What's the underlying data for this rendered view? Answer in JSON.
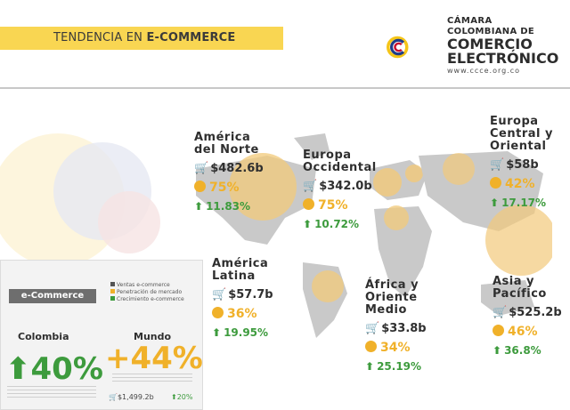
{
  "header": {
    "title_prefix": "TENDENCIA EN ",
    "title_bold": "E-COMMERCE"
  },
  "logo": {
    "line1": "CÁMARA",
    "line2": "COLOMBIANA DE",
    "line3": "COMERCIO",
    "line4": "ELECTRÓNICO",
    "url": "www.ccce.org.co"
  },
  "colors": {
    "yellow": "#f9d652",
    "orange": "#f0b12a",
    "green": "#3d9b3d",
    "map_land": "#c9c9c9",
    "map_highlight": "#f2c97a"
  },
  "regions": [
    {
      "key": "na",
      "name_1": "América",
      "name_2": "del Norte",
      "amount": "$482.6b",
      "share": "75%",
      "growth": "11.83%"
    },
    {
      "key": "we",
      "name_1": "Europa",
      "name_2": "Occidental",
      "amount": "$342.0b",
      "share": "75%",
      "growth": "10.72%"
    },
    {
      "key": "ce",
      "name_1": "Europa",
      "name_2": "Central y",
      "name_3": "Oriental",
      "amount": "$58b",
      "share": "42%",
      "growth": "17.17%"
    },
    {
      "key": "la",
      "name_1": "América",
      "name_2": "Latina",
      "amount": "$57.7b",
      "share": "36%",
      "growth": "19.95%"
    },
    {
      "key": "af",
      "name_1": "África y",
      "name_2": "Oriente",
      "name_3": "Medio",
      "amount": "$33.8b",
      "share": "34%",
      "growth": "25.19%"
    },
    {
      "key": "ap",
      "name_1": "Asia y",
      "name_2": "Pacífico",
      "amount": "$525.2b",
      "share": "46%",
      "growth": "36.8%"
    }
  ],
  "panel": {
    "tag": "e-Commerce",
    "legend": [
      "Ventas e-commerce",
      "Penetración de mercado",
      "Crecimiento e-commerce"
    ],
    "colombia": {
      "label": "Colombia",
      "value": "40%",
      "arrow": "⬆"
    },
    "mundo": {
      "label": "Mundo",
      "value": "+44%"
    },
    "mundo_amount": "$1,499.2b",
    "mundo_growth": "20%"
  },
  "icons": {
    "cart": "cart-icon",
    "dot": "circle-icon",
    "arrow": "arrow-up-icon"
  }
}
